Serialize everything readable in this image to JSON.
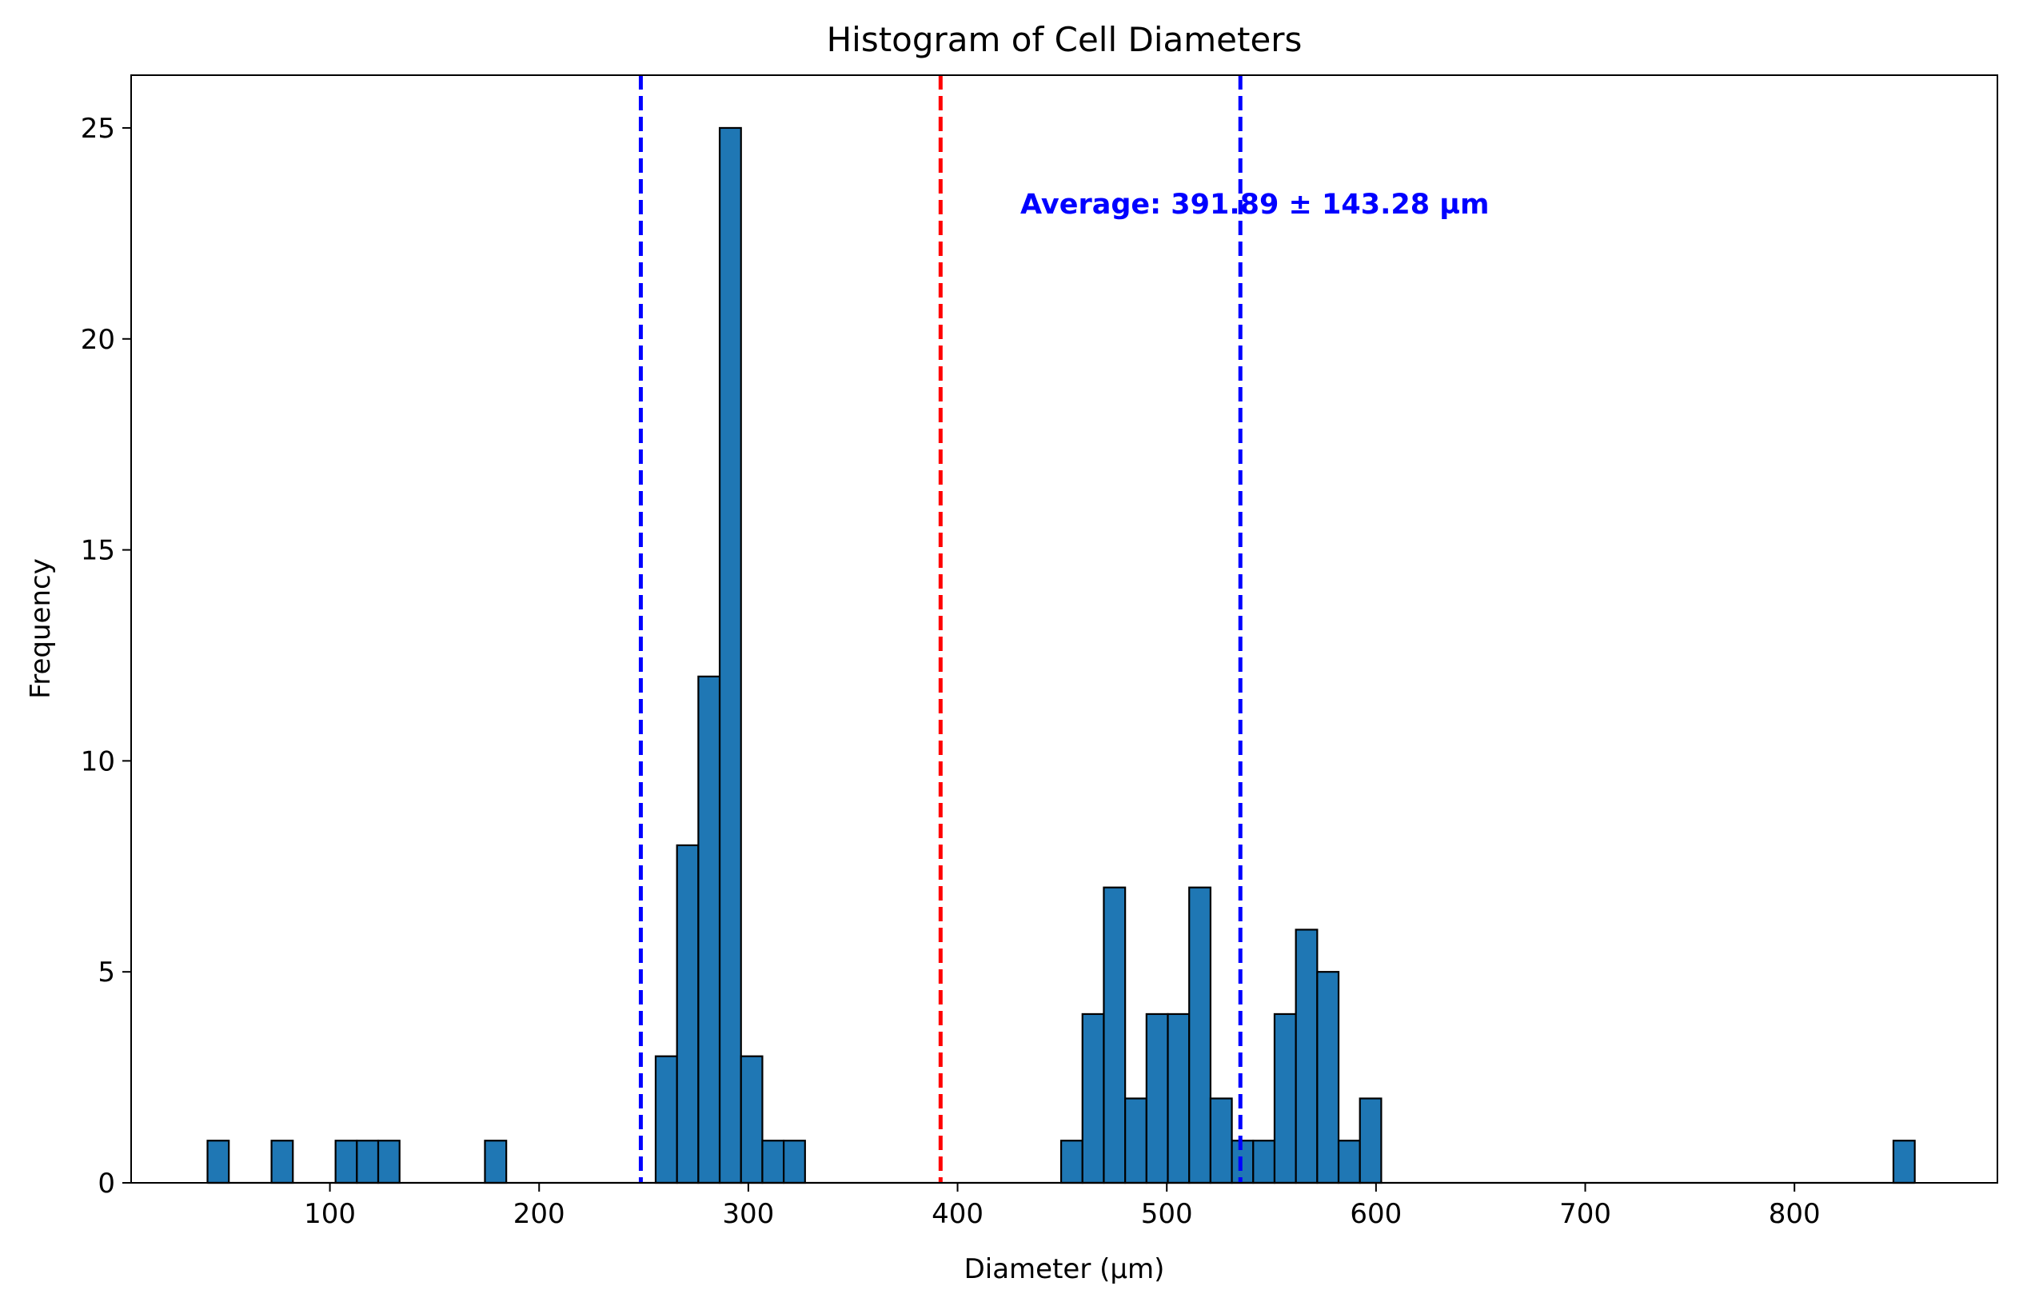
{
  "chart_data": {
    "type": "bar",
    "title": "Histogram of Cell Diameters",
    "xlabel": "Diameter (µm)",
    "ylabel": "Frequency",
    "xlim": [
      5,
      897
    ],
    "ylim": [
      0,
      26.25
    ],
    "xticks": [
      100,
      200,
      300,
      400,
      500,
      600,
      700,
      800
    ],
    "yticks": [
      0,
      5,
      10,
      15,
      20,
      25
    ],
    "bin_width": 10.2,
    "bins": [
      {
        "x0": 41.5,
        "count": 1
      },
      {
        "x0": 72.1,
        "count": 1
      },
      {
        "x0": 102.7,
        "count": 1
      },
      {
        "x0": 112.9,
        "count": 1
      },
      {
        "x0": 123.1,
        "count": 1
      },
      {
        "x0": 174.1,
        "count": 1
      },
      {
        "x0": 255.7,
        "count": 3
      },
      {
        "x0": 265.9,
        "count": 8
      },
      {
        "x0": 276.1,
        "count": 12
      },
      {
        "x0": 286.3,
        "count": 25
      },
      {
        "x0": 296.5,
        "count": 3
      },
      {
        "x0": 306.7,
        "count": 1
      },
      {
        "x0": 316.9,
        "count": 1
      },
      {
        "x0": 449.5,
        "count": 1
      },
      {
        "x0": 459.7,
        "count": 4
      },
      {
        "x0": 469.9,
        "count": 7
      },
      {
        "x0": 480.1,
        "count": 2
      },
      {
        "x0": 490.3,
        "count": 4
      },
      {
        "x0": 500.5,
        "count": 4
      },
      {
        "x0": 510.7,
        "count": 7
      },
      {
        "x0": 520.9,
        "count": 2
      },
      {
        "x0": 531.1,
        "count": 1
      },
      {
        "x0": 541.3,
        "count": 1
      },
      {
        "x0": 551.5,
        "count": 4
      },
      {
        "x0": 561.7,
        "count": 6
      },
      {
        "x0": 571.9,
        "count": 5
      },
      {
        "x0": 582.1,
        "count": 1
      },
      {
        "x0": 592.3,
        "count": 2
      },
      {
        "x0": 847.3,
        "count": 1
      }
    ],
    "hist_range": [
      41.5,
      857.5
    ],
    "mean_line": {
      "x": 391.89,
      "color": "#ff0000",
      "style": "dashed"
    },
    "std_lines": [
      {
        "x": 248.61,
        "color": "#0000ff",
        "style": "dashed"
      },
      {
        "x": 535.17,
        "color": "#0000ff",
        "style": "dashed"
      }
    ],
    "annotation": {
      "text": "Average: 391.89 ± 143.28 µm",
      "x": 430,
      "y": 23.2,
      "color": "#0000ff"
    },
    "bar_color": "#1f77b4",
    "edge_color": "#000000",
    "grid": false,
    "legend": "none"
  }
}
